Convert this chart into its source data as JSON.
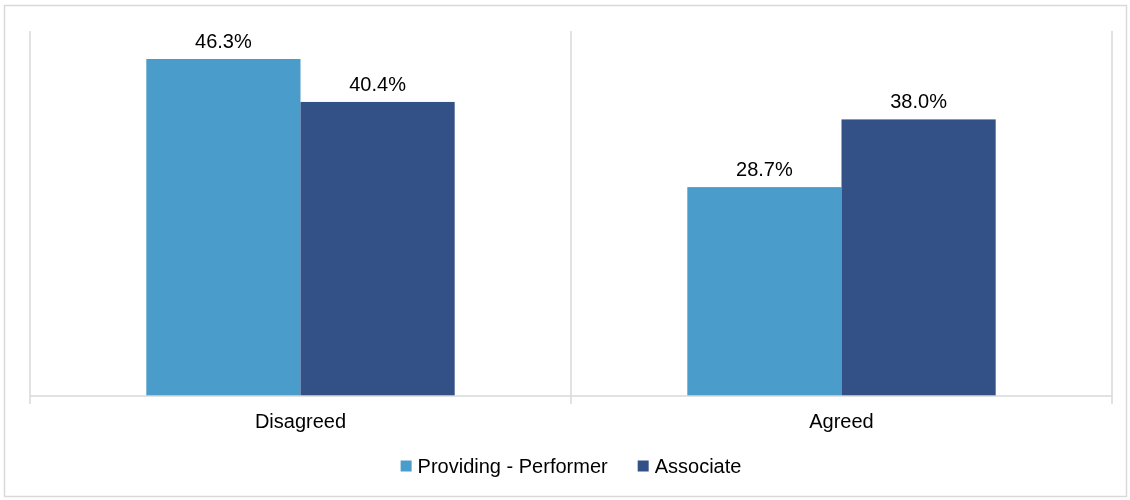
{
  "chart_data": {
    "type": "bar",
    "categories": [
      "Disagreed",
      "Agreed"
    ],
    "series": [
      {
        "name": "Providing - Performer",
        "color": "#4a9cca",
        "values": [
          46.3,
          28.7
        ],
        "value_labels": [
          "46.3%",
          "28.7%"
        ]
      },
      {
        "name": "Associate",
        "color": "#335186",
        "values": [
          40.4,
          38.0
        ],
        "value_labels": [
          "40.4%",
          "38.0%"
        ]
      }
    ],
    "grid": "x",
    "legend": "bottom"
  }
}
